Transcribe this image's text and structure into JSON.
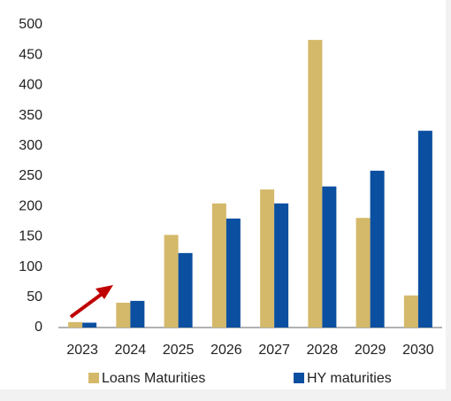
{
  "chart_data": {
    "type": "bar",
    "categories": [
      "2023",
      "2024",
      "2025",
      "2026",
      "2027",
      "2028",
      "2029",
      "2030"
    ],
    "series": [
      {
        "name": "Loans Maturities",
        "color": "#d4b96a",
        "values": [
          9,
          41,
          153,
          205,
          228,
          475,
          181,
          53
        ]
      },
      {
        "name": "HY maturities",
        "color": "#0b4fa0",
        "values": [
          8,
          44,
          123,
          180,
          205,
          233,
          259,
          325
        ]
      }
    ],
    "ylim": [
      0,
      500
    ],
    "yticks": [
      0,
      50,
      100,
      150,
      200,
      250,
      300,
      350,
      400,
      450,
      500
    ],
    "legend": "bottom"
  }
}
